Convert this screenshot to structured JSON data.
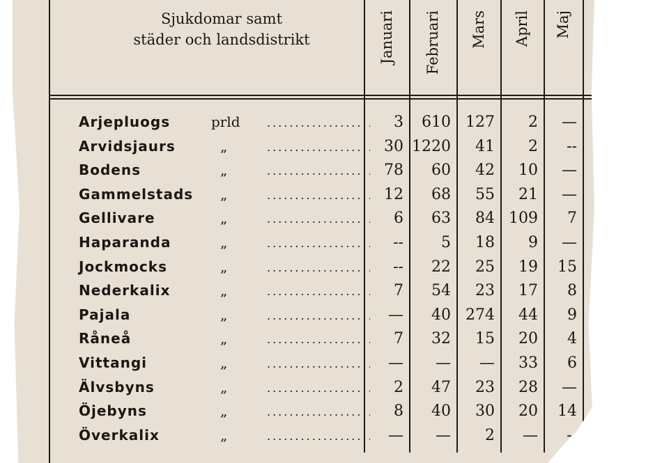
{
  "header": {
    "title_line1": "Sjukdomar samt",
    "title_line2": "städer och landsdistrikt",
    "months": [
      "Januari",
      "Februari",
      "Mars",
      "April",
      "Maj"
    ]
  },
  "rows": [
    {
      "name": "Arjepluogs",
      "qualifier": "prld",
      "values": [
        "3",
        "610",
        "127",
        "2",
        "—"
      ]
    },
    {
      "name": "Arvidsjaurs",
      "qualifier": "„",
      "values": [
        "30",
        "1220",
        "41",
        "2",
        "--"
      ]
    },
    {
      "name": "Bodens",
      "qualifier": "„",
      "values": [
        "78",
        "60",
        "42",
        "10",
        "—"
      ]
    },
    {
      "name": "Gammelstads",
      "qualifier": "„",
      "values": [
        "12",
        "68",
        "55",
        "21",
        "—"
      ]
    },
    {
      "name": "Gellivare",
      "qualifier": "„",
      "values": [
        "6",
        "63",
        "84",
        "109",
        "7"
      ]
    },
    {
      "name": "Haparanda",
      "qualifier": "„",
      "values": [
        "--",
        "5",
        "18",
        "9",
        "—"
      ]
    },
    {
      "name": "Jockmocks",
      "qualifier": "„",
      "values": [
        "--",
        "22",
        "25",
        "19",
        "15"
      ]
    },
    {
      "name": "Nederkalix",
      "qualifier": "„",
      "values": [
        "7",
        "54",
        "23",
        "17",
        "8"
      ]
    },
    {
      "name": "Pajala",
      "qualifier": "„",
      "values": [
        "—",
        "40",
        "274",
        "44",
        "9"
      ]
    },
    {
      "name": "Råneå",
      "qualifier": "„",
      "values": [
        "7",
        "32",
        "15",
        "20",
        "4"
      ]
    },
    {
      "name": "Vittangi",
      "qualifier": "„",
      "values": [
        "—",
        "—",
        "—",
        "33",
        "6"
      ]
    },
    {
      "name": "Älvsbyns",
      "qualifier": "„",
      "values": [
        "2",
        "47",
        "23",
        "28",
        "—"
      ]
    },
    {
      "name": "Öjebyns",
      "qualifier": "„",
      "values": [
        "8",
        "40",
        "30",
        "20",
        "14"
      ]
    },
    {
      "name": "Överkalix",
      "qualifier": "„",
      "values": [
        "—",
        "—",
        "2",
        "—",
        "--"
      ]
    }
  ]
}
